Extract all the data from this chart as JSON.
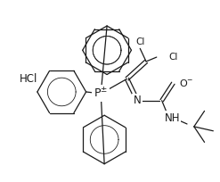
{
  "background_color": "#ffffff",
  "line_color": "#1a1a1a",
  "line_width": 0.9,
  "figsize": [
    2.47,
    2.04
  ],
  "dpi": 100,
  "HCl_label": "HCl",
  "HCl_fontsize": 8.5
}
